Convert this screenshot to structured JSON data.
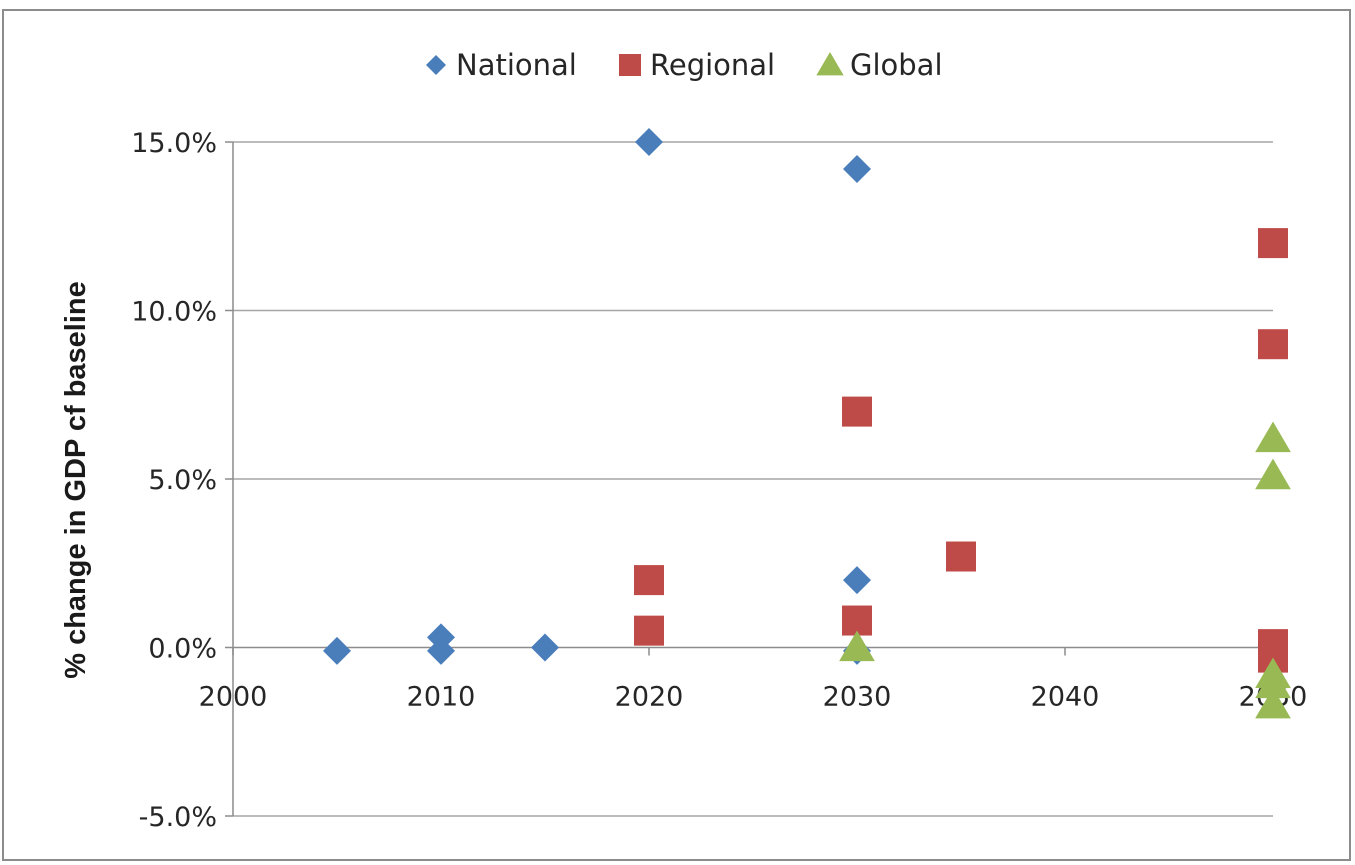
{
  "chart_data": {
    "type": "scatter",
    "title": "",
    "xlabel": "",
    "ylabel": "% change in GDP cf baseline",
    "xlim": [
      2000,
      2050
    ],
    "ylim": [
      -5.0,
      15.0
    ],
    "x_ticks": [
      2000,
      2010,
      2020,
      2030,
      2040,
      2050
    ],
    "x_tick_labels": [
      "2000",
      "2010",
      "2020",
      "2030",
      "2040",
      "2050"
    ],
    "y_ticks": [
      -5.0,
      0.0,
      5.0,
      10.0,
      15.0
    ],
    "y_tick_labels": [
      "-5.0%",
      "0.0%",
      "5.0%",
      "10.0%",
      "15.0%"
    ],
    "grid": {
      "horizontal": true,
      "vertical": false
    },
    "legend_position": "top",
    "series": [
      {
        "name": "National",
        "marker": "diamond",
        "color": "#4a7ebb",
        "points": [
          [
            2005,
            -0.1
          ],
          [
            2010,
            0.3
          ],
          [
            2010,
            -0.1
          ],
          [
            2015,
            0.0
          ],
          [
            2020,
            15.0
          ],
          [
            2030,
            14.2
          ],
          [
            2030,
            2.0
          ],
          [
            2030,
            -0.1
          ]
        ]
      },
      {
        "name": "Regional",
        "marker": "square",
        "color": "#be4b48",
        "points": [
          [
            2020,
            2.0
          ],
          [
            2020,
            0.5
          ],
          [
            2030,
            7.0
          ],
          [
            2030,
            0.8
          ],
          [
            2035,
            2.7
          ],
          [
            2050,
            12.0
          ],
          [
            2050,
            9.0
          ],
          [
            2050,
            0.1
          ],
          [
            2050,
            -0.3
          ]
        ]
      },
      {
        "name": "Global",
        "marker": "triangle",
        "color": "#98b954",
        "points": [
          [
            2030,
            0.0
          ],
          [
            2050,
            6.2
          ],
          [
            2050,
            5.1
          ],
          [
            2050,
            -0.8
          ],
          [
            2050,
            -1.1
          ],
          [
            2050,
            -1.7
          ]
        ]
      }
    ]
  }
}
